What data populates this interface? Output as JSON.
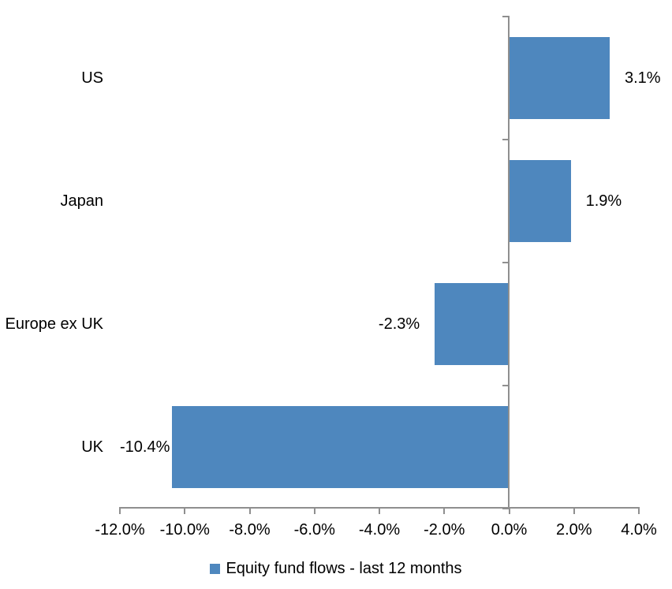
{
  "chart_data": {
    "type": "bar",
    "orientation": "horizontal",
    "categories": [
      "US",
      "Japan",
      "Europe ex UK",
      "UK"
    ],
    "values": [
      3.1,
      1.9,
      -2.3,
      -10.4
    ],
    "data_labels": [
      "3.1%",
      "1.9%",
      "-2.3%",
      "-10.4%"
    ],
    "series_name": "Equity fund flows - last 12 months",
    "x_tick_labels": [
      "-12.0%",
      "-10.0%",
      "-8.0%",
      "-6.0%",
      "-4.0%",
      "-2.0%",
      "0.0%",
      "2.0%",
      "4.0%"
    ],
    "xlim": [
      -12,
      4
    ],
    "xtick_step": 2,
    "grid": false,
    "legend_position": "bottom",
    "colors": {
      "bar": "#4E87BE",
      "axis": "#8F8F8F",
      "text": "#000000",
      "background": "#FFFFFF"
    }
  }
}
